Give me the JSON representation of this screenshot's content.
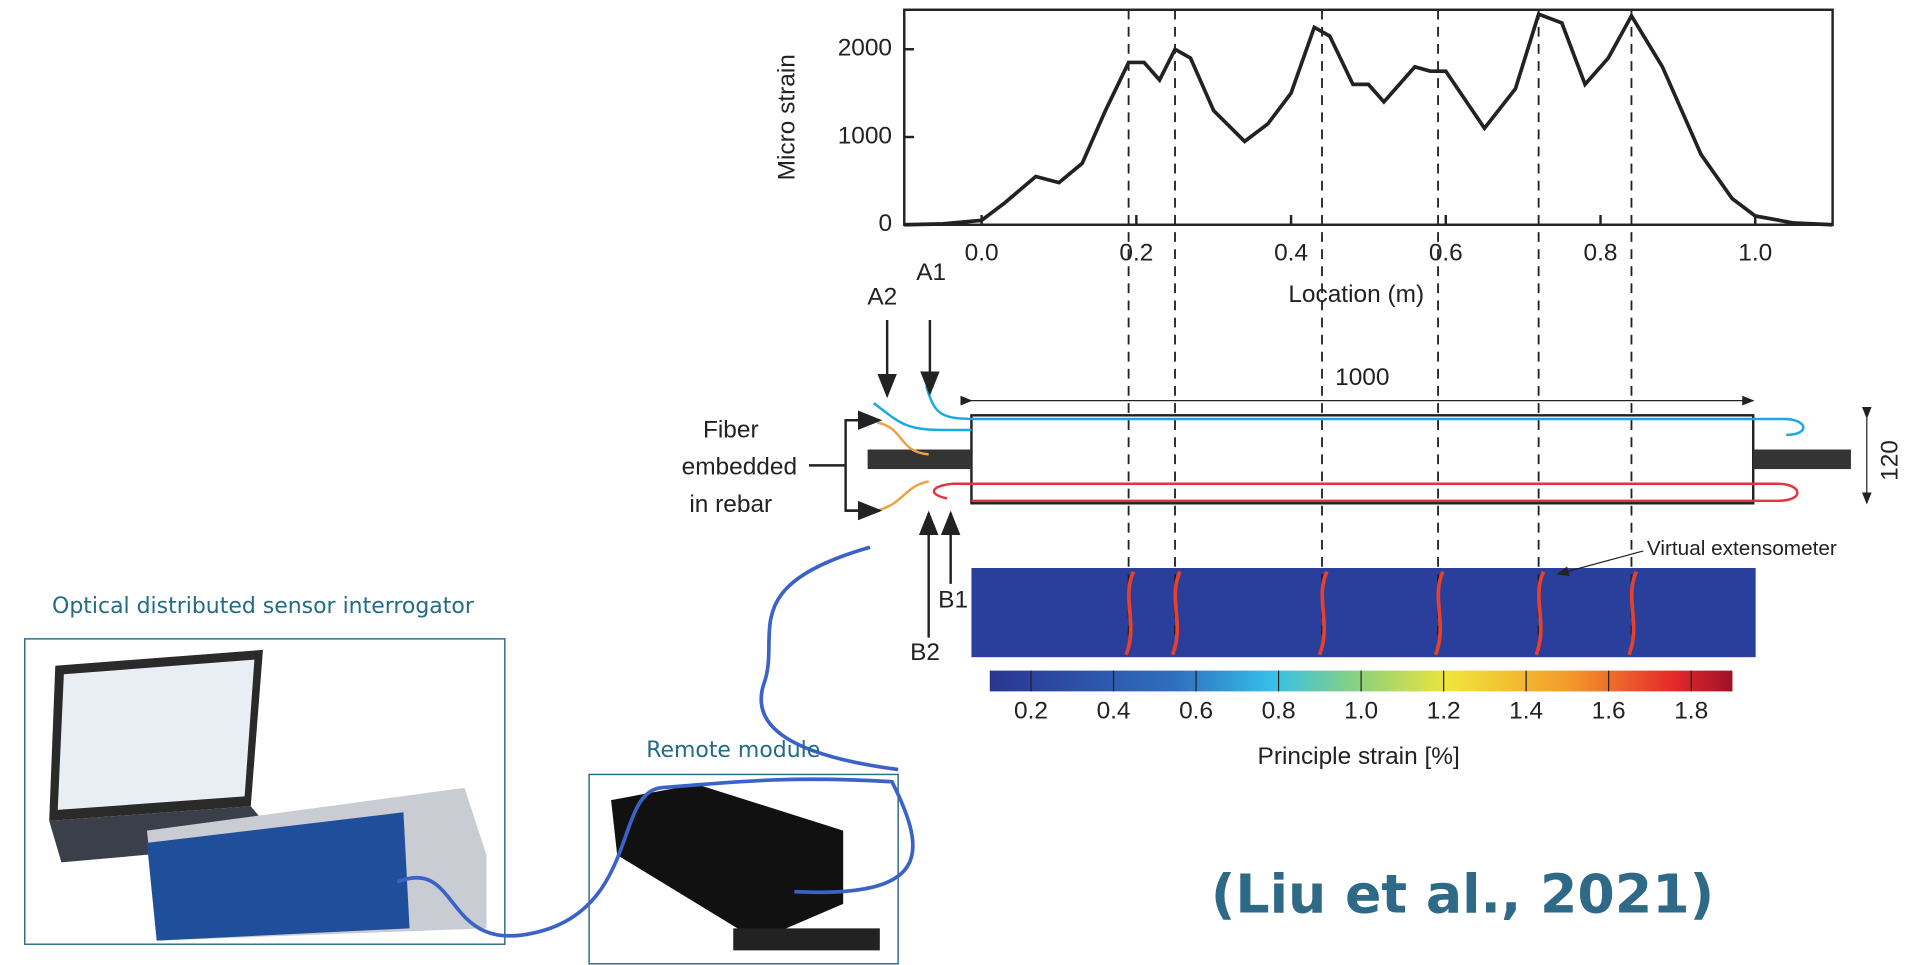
{
  "chart_data": {
    "type": "line",
    "x": [
      -0.1,
      -0.05,
      0.0,
      0.03,
      0.05,
      0.07,
      0.1,
      0.13,
      0.16,
      0.19,
      0.21,
      0.23,
      0.25,
      0.27,
      0.3,
      0.34,
      0.37,
      0.4,
      0.43,
      0.45,
      0.48,
      0.5,
      0.52,
      0.56,
      0.58,
      0.6,
      0.65,
      0.69,
      0.72,
      0.75,
      0.78,
      0.81,
      0.84,
      0.88,
      0.93,
      0.97,
      1.0,
      1.05,
      1.1
    ],
    "values": [
      0,
      10,
      50,
      250,
      400,
      550,
      480,
      700,
      1300,
      1850,
      1850,
      1650,
      2000,
      1900,
      1300,
      950,
      1150,
      1500,
      2250,
      2150,
      1600,
      1600,
      1400,
      1800,
      1750,
      1750,
      1100,
      1550,
      2400,
      2300,
      1600,
      1900,
      2380,
      1800,
      800,
      300,
      100,
      20,
      0
    ],
    "color": "#222222",
    "xlabel": "Location (m)",
    "ylabel": "Micro strain",
    "xlim": [
      -0.1,
      1.1
    ],
    "ylim": [
      0,
      2450
    ],
    "xticks": [
      {
        "value": 0,
        "label": "0.0"
      },
      0.2,
      0.4,
      0.6,
      0.8,
      {
        "value": 1,
        "label": "1.0"
      }
    ],
    "yticks": [
      0,
      1000,
      2000
    ],
    "vlines": [
      0.19,
      0.25,
      0.44,
      0.59,
      0.72,
      0.84
    ]
  },
  "diagram": {
    "fibers": [
      "A1",
      "A2",
      "B1",
      "B2"
    ],
    "fiber_label": [
      "Fiber",
      "embedded",
      "in rebar"
    ],
    "length": "1000",
    "height": "120",
    "extensometer": "Virtual extensometer",
    "colorbar": {
      "ticks": [
        0.2,
        0.4,
        0.6,
        0.8,
        {
          "value": 1,
          "label": "1.0"
        },
        1.2,
        1.4,
        1.6,
        1.8
      ],
      "lim": [
        0.1,
        1.9
      ],
      "label": "Principle strain [%]"
    },
    "interrogator": "Optical distributed sensor interrogator",
    "remote": "Remote module",
    "citation": "(Liu et al., 2021)"
  }
}
